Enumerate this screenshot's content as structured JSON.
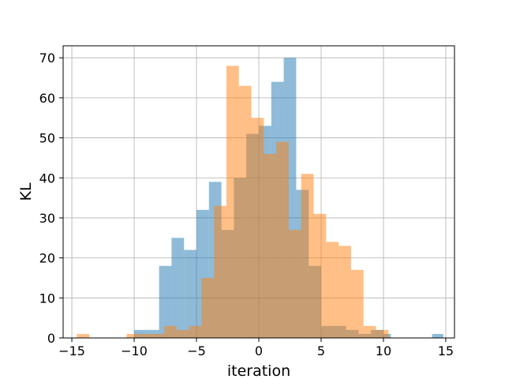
{
  "chart_data": {
    "type": "histogram",
    "title": "",
    "xlabel": "iteration",
    "ylabel": "KL",
    "xlim": [
      -15.7,
      15.7
    ],
    "ylim": [
      0,
      73
    ],
    "grid": true,
    "xticks": [
      -15,
      -10,
      -5,
      0,
      5,
      10,
      15
    ],
    "yticks": [
      0,
      10,
      20,
      30,
      40,
      50,
      60,
      70
    ],
    "colors": {
      "series_a": "#1f77b4",
      "series_b": "#ff7f0e",
      "alpha": 0.5
    },
    "series": [
      {
        "color": "#1f77b4",
        "bins": [
          [
            -10.0,
            -9.0,
            2
          ],
          [
            -9.0,
            -8.0,
            2
          ],
          [
            -8.0,
            -7.0,
            18
          ],
          [
            -7.0,
            -6.0,
            25
          ],
          [
            -6.0,
            -5.0,
            22
          ],
          [
            -5.0,
            -4.0,
            32
          ],
          [
            -4.0,
            -3.0,
            39
          ],
          [
            -3.0,
            -2.0,
            27
          ],
          [
            -2.0,
            -1.0,
            40
          ],
          [
            -1.0,
            0.0,
            51
          ],
          [
            0.0,
            1.0,
            53
          ],
          [
            1.0,
            2.0,
            64
          ],
          [
            2.0,
            3.0,
            70
          ],
          [
            3.0,
            4.0,
            37
          ],
          [
            4.0,
            5.0,
            18
          ],
          [
            5.0,
            6.0,
            3
          ],
          [
            6.0,
            7.0,
            3
          ],
          [
            7.0,
            8.0,
            2
          ],
          [
            8.0,
            9.0,
            1
          ],
          [
            9.0,
            10.0,
            2
          ],
          [
            10.0,
            10.6,
            1
          ],
          [
            13.9,
            14.8,
            1
          ]
        ]
      },
      {
        "color": "#ff7f0e",
        "bins": [
          [
            -14.6,
            -13.6,
            1
          ],
          [
            -10.6,
            -9.6,
            1
          ],
          [
            -9.6,
            -8.6,
            1
          ],
          [
            -8.6,
            -7.6,
            1
          ],
          [
            -7.6,
            -6.6,
            3
          ],
          [
            -6.6,
            -5.6,
            2
          ],
          [
            -5.6,
            -4.6,
            3
          ],
          [
            -4.6,
            -3.6,
            15
          ],
          [
            -3.6,
            -2.6,
            33
          ],
          [
            -2.6,
            -1.6,
            68
          ],
          [
            -1.6,
            -0.6,
            63
          ],
          [
            -0.6,
            0.4,
            55
          ],
          [
            0.4,
            1.4,
            46
          ],
          [
            1.4,
            2.4,
            49
          ],
          [
            2.4,
            3.4,
            27
          ],
          [
            3.4,
            4.4,
            41
          ],
          [
            4.4,
            5.4,
            31
          ],
          [
            5.4,
            6.4,
            24
          ],
          [
            6.4,
            7.4,
            23
          ],
          [
            7.4,
            8.4,
            17
          ],
          [
            8.4,
            9.4,
            3
          ],
          [
            9.4,
            10.4,
            2
          ]
        ]
      }
    ]
  }
}
